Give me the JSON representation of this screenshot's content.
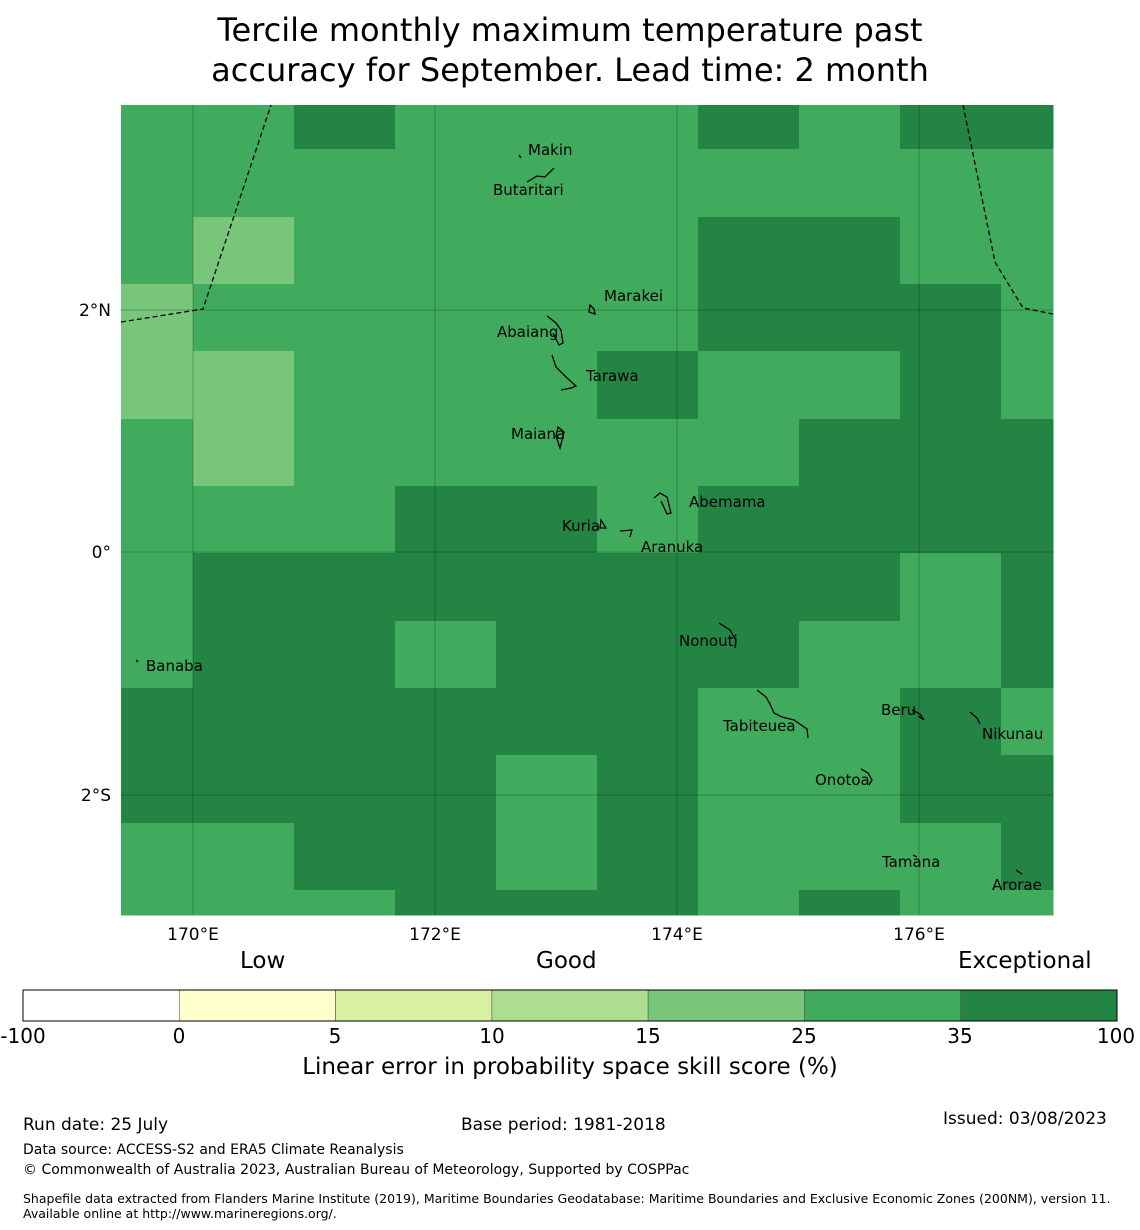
{
  "title": {
    "line1": "Tercile monthly maximum temperature past",
    "line2": "accuracy for September. Lead time: 2 month"
  },
  "map": {
    "x_ticks": [
      "170°E",
      "172°E",
      "174°E",
      "176°E"
    ],
    "y_ticks": [
      "2°N",
      "0°",
      "2°S"
    ],
    "grid": "on",
    "grid_values": [
      [
        "medium",
        "medium",
        "dark",
        "medium",
        "medium",
        "medium",
        "dark",
        "medium",
        "dark",
        "dark"
      ],
      [
        "medium",
        "medium",
        "medium",
        "medium",
        "medium",
        "medium",
        "medium",
        "medium",
        "medium",
        "medium"
      ],
      [
        "medium",
        "light",
        "medium",
        "medium",
        "medium",
        "medium",
        "dark",
        "dark",
        "medium",
        "medium"
      ],
      [
        "light",
        "medium",
        "medium",
        "medium",
        "medium",
        "medium",
        "dark",
        "dark",
        "dark",
        "medium"
      ],
      [
        "light",
        "light",
        "medium",
        "medium",
        "medium",
        "dark",
        "medium",
        "medium",
        "dark",
        "medium"
      ],
      [
        "medium",
        "light",
        "medium",
        "medium",
        "medium",
        "medium",
        "medium",
        "dark",
        "dark",
        "dark"
      ],
      [
        "medium",
        "medium",
        "medium",
        "dark",
        "dark",
        "medium",
        "dark",
        "dark",
        "dark",
        "dark"
      ],
      [
        "medium",
        "dark",
        "dark",
        "dark",
        "dark",
        "dark",
        "dark",
        "dark",
        "medium",
        "dark"
      ],
      [
        "medium",
        "dark",
        "dark",
        "medium",
        "dark",
        "dark",
        "dark",
        "medium",
        "medium",
        "dark"
      ],
      [
        "dark",
        "dark",
        "dark",
        "dark",
        "dark",
        "dark",
        "medium",
        "medium",
        "dark",
        "medium"
      ],
      [
        "dark",
        "dark",
        "dark",
        "dark",
        "medium",
        "dark",
        "medium",
        "medium",
        "dark",
        "dark"
      ],
      [
        "medium",
        "medium",
        "dark",
        "dark",
        "medium",
        "dark",
        "medium",
        "medium",
        "medium",
        "dark"
      ],
      [
        "medium",
        "medium",
        "medium",
        "dark",
        "dark",
        "dark",
        "medium",
        "dark",
        "medium",
        "medium"
      ]
    ],
    "island_labels": [
      "Makin",
      "Butaritari",
      "Marakei",
      "Abaiang",
      "Tarawa",
      "Maiana",
      "Abemama",
      "Kuria",
      "Aranuka",
      "Nonouti",
      "Banaba",
      "Beru",
      "Tabiteuea",
      "Nikunau",
      "Onotoa",
      "Tamana",
      "Arorae"
    ],
    "colors": {
      "light": "#78c679",
      "medium": "#41ab5d",
      "dark": "#238443"
    }
  },
  "colorbar": {
    "categories": [
      "Low",
      "Good",
      "Exceptional"
    ],
    "tick_labels": [
      "-100",
      "0",
      "5",
      "10",
      "15",
      "25",
      "35",
      "100"
    ],
    "colors": [
      "#ffffff",
      "#ffffcc",
      "#d9f0a3",
      "#addd8e",
      "#78c679",
      "#41ab5d",
      "#238443"
    ],
    "label": "Linear error in probability space skill score (%)"
  },
  "footer": {
    "run_date": "Run date: 25 July",
    "base_period": "Base period: 1981-2018",
    "issued": "Issued: 03/08/2023",
    "data_source": "Data source: ACCESS-S2 and ERA5 Climate Reanalysis",
    "copyright": "© Commonwealth of Australia 2023, Australian Bureau of Meteorology, Supported by COSPPac",
    "shapefile": "Shapefile data extracted from Flanders Marine Institute (2019), Maritime Boundaries Geodatabase: Maritime Boundaries and Exclusive Economic Zones (200NM), version 11. Available online at http://www.marineregions.org/."
  }
}
